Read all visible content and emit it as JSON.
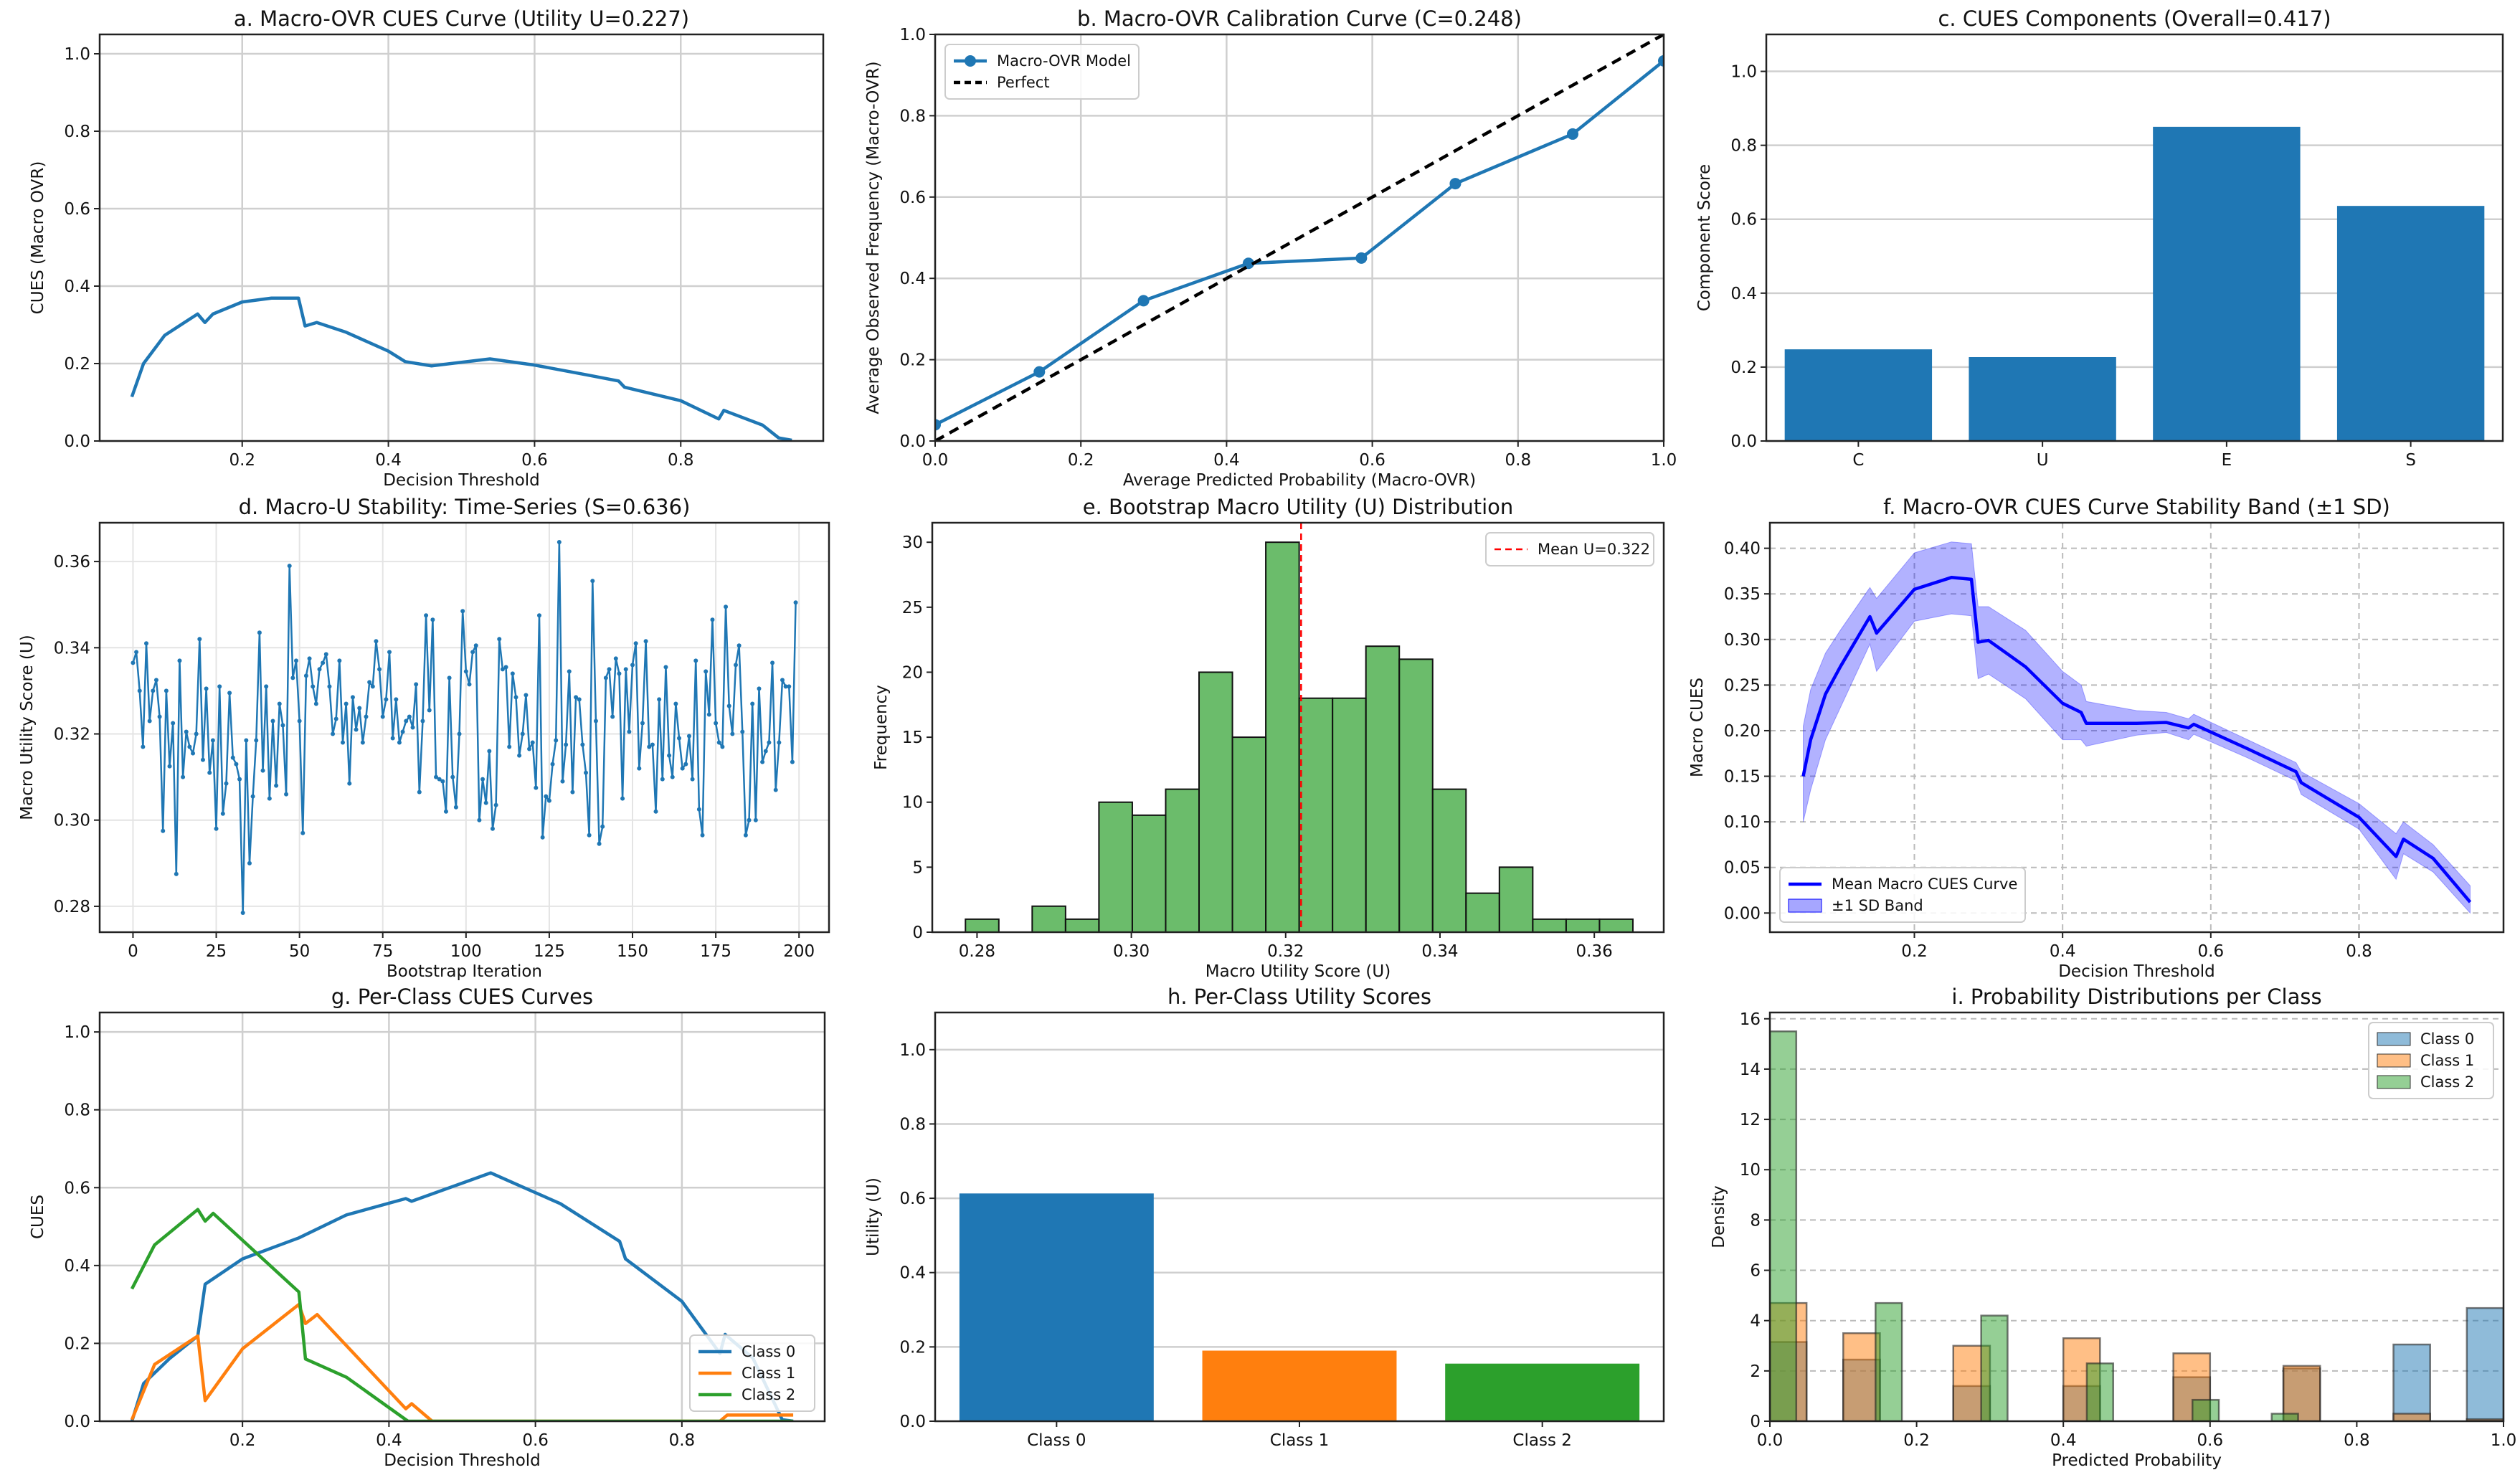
{
  "chart_data": [
    {
      "panel": "a",
      "type": "line",
      "title": "a. Macro-OVR CUES Curve (Utility U=0.227)",
      "xlabel": "Decision Threshold",
      "ylabel": "CUES (Macro OVR)",
      "xlim": [
        0.005,
        0.995
      ],
      "ylim": [
        0,
        1.05
      ],
      "xticks": [
        "0.2",
        "0.4",
        "0.6",
        "0.8"
      ],
      "yticks": [
        "0.0",
        "0.2",
        "0.4",
        "0.6",
        "0.8",
        "1.0"
      ],
      "grid": "both",
      "grid_style": "solid",
      "series": [
        {
          "kind": "line",
          "color": "#1f77b4",
          "x": [
            0.049,
            0.065,
            0.094,
            0.139,
            0.149,
            0.16,
            0.2,
            0.24,
            0.277,
            0.286,
            0.302,
            0.342,
            0.4,
            0.423,
            0.459,
            0.539,
            0.6,
            0.671,
            0.715,
            0.723,
            0.8,
            0.852,
            0.859,
            0.912,
            0.934,
            0.952
          ],
          "y": [
            0.114,
            0.2,
            0.273,
            0.328,
            0.306,
            0.328,
            0.359,
            0.369,
            0.369,
            0.297,
            0.306,
            0.281,
            0.232,
            0.205,
            0.194,
            0.212,
            0.196,
            0.171,
            0.155,
            0.139,
            0.104,
            0.057,
            0.079,
            0.041,
            0.008,
            0.002
          ]
        }
      ]
    },
    {
      "panel": "b",
      "type": "line",
      "title": "b. Macro-OVR Calibration Curve (C=0.248)",
      "xlabel": "Average Predicted Probability (Macro-OVR)",
      "ylabel": "Average Observed Frequency (Macro-OVR)",
      "xlim": [
        0,
        1
      ],
      "ylim": [
        0,
        1
      ],
      "xticks": [
        "0.0",
        "0.2",
        "0.4",
        "0.6",
        "0.8",
        "1.0"
      ],
      "yticks": [
        "0.0",
        "0.2",
        "0.4",
        "0.6",
        "0.8",
        "1.0"
      ],
      "grid": "both",
      "grid_style": "solid",
      "legend": "upper-left",
      "series": [
        {
          "name": "Macro-OVR Model",
          "kind": "line",
          "color": "#1f77b4",
          "marker": true,
          "x": [
            0.0,
            0.143,
            0.286,
            0.43,
            0.585,
            0.714,
            0.875,
            1.0
          ],
          "y": [
            0.04,
            0.17,
            0.345,
            0.437,
            0.45,
            0.633,
            0.755,
            0.935
          ]
        },
        {
          "name": "Perfect",
          "kind": "line",
          "color": "#000000",
          "dash": true,
          "x": [
            0,
            1
          ],
          "y": [
            0,
            1
          ]
        }
      ]
    },
    {
      "panel": "c",
      "type": "bar",
      "title": "c. CUES Components (Overall=0.417)",
      "xlabel": "",
      "ylabel": "Component Score",
      "xlim": [
        -0.5,
        3.5
      ],
      "ylim": [
        0,
        1.1
      ],
      "categories": [
        "C",
        "U",
        "E",
        "S"
      ],
      "yticks": [
        "0.0",
        "0.2",
        "0.4",
        "0.6",
        "0.8",
        "1.0"
      ],
      "grid": "y",
      "grid_style": "solid",
      "series": [
        {
          "kind": "bar",
          "color": "#1f77b4",
          "values": [
            0.248,
            0.227,
            0.85,
            0.636
          ]
        }
      ]
    },
    {
      "panel": "d",
      "type": "line",
      "title": "d. Macro-U Stability: Time-Series (S=0.636)",
      "xlabel": "Bootstrap Iteration",
      "ylabel": "Macro Utility Score (U)",
      "xlim": [
        -10,
        209
      ],
      "ylim": [
        0.274,
        0.369
      ],
      "xticks": [
        "0",
        "25",
        "50",
        "75",
        "100",
        "125",
        "150",
        "175",
        "200"
      ],
      "yticks": [
        "0.28",
        "0.30",
        "0.32",
        "0.34",
        "0.36"
      ],
      "grid": "both",
      "grid_style": "light",
      "series": [
        {
          "kind": "line",
          "color": "#1f77b4",
          "marker": true,
          "thin": true,
          "y": [
            0.3365,
            0.339,
            0.33,
            0.317,
            0.341,
            0.323,
            0.33,
            0.3325,
            0.324,
            0.2975,
            0.33,
            0.3125,
            0.3225,
            0.2875,
            0.337,
            0.31,
            0.3205,
            0.317,
            0.3155,
            0.32,
            0.342,
            0.314,
            0.3305,
            0.311,
            0.3185,
            0.298,
            0.331,
            0.3015,
            0.3085,
            0.3295,
            0.3145,
            0.313,
            0.3095,
            0.2785,
            0.3185,
            0.29,
            0.3055,
            0.3185,
            0.3435,
            0.3115,
            0.331,
            0.305,
            0.323,
            0.308,
            0.327,
            0.322,
            0.306,
            0.359,
            0.333,
            0.337,
            0.323,
            0.297,
            0.3335,
            0.3375,
            0.331,
            0.327,
            0.335,
            0.3365,
            0.3385,
            0.331,
            0.32,
            0.3235,
            0.337,
            0.318,
            0.327,
            0.3085,
            0.3285,
            0.321,
            0.326,
            0.318,
            0.324,
            0.332,
            0.331,
            0.3415,
            0.335,
            0.324,
            0.328,
            0.339,
            0.319,
            0.328,
            0.318,
            0.3205,
            0.323,
            0.324,
            0.3215,
            0.3315,
            0.3065,
            0.323,
            0.3475,
            0.3255,
            0.3465,
            0.31,
            0.3095,
            0.309,
            0.302,
            0.333,
            0.31,
            0.303,
            0.32,
            0.3485,
            0.3345,
            0.3315,
            0.339,
            0.3405,
            0.3,
            0.3095,
            0.304,
            0.316,
            0.298,
            0.3035,
            0.342,
            0.335,
            0.3355,
            0.317,
            0.334,
            0.3285,
            0.315,
            0.32,
            0.329,
            0.3165,
            0.318,
            0.3075,
            0.3475,
            0.296,
            0.3055,
            0.3045,
            0.313,
            0.3185,
            0.3645,
            0.309,
            0.3175,
            0.3345,
            0.3065,
            0.3285,
            0.328,
            0.3175,
            0.311,
            0.2965,
            0.3555,
            0.323,
            0.2945,
            0.2985,
            0.333,
            0.335,
            0.324,
            0.3375,
            0.334,
            0.305,
            0.335,
            0.3205,
            0.336,
            0.341,
            0.312,
            0.3225,
            0.3415,
            0.317,
            0.3175,
            0.302,
            0.328,
            0.3095,
            0.3355,
            0.315,
            0.31,
            0.327,
            0.319,
            0.312,
            0.313,
            0.3195,
            0.3095,
            0.337,
            0.3025,
            0.2965,
            0.3345,
            0.3245,
            0.3465,
            0.3225,
            0.318,
            0.317,
            0.3495,
            0.3265,
            0.32,
            0.336,
            0.3405,
            0.3205,
            0.2965,
            0.3,
            0.327,
            0.3,
            0.3305,
            0.3135,
            0.316,
            0.318,
            0.3365,
            0.307,
            0.318,
            0.3325,
            0.331,
            0.331,
            0.3135,
            0.3505
          ]
        }
      ]
    },
    {
      "panel": "e",
      "type": "bar",
      "title": "e. Bootstrap Macro Utility (U) Distribution",
      "xlabel": "Macro Utility Score (U)",
      "ylabel": "Frequency",
      "xlim": [
        0.2742,
        0.369
      ],
      "ylim": [
        0,
        31.5
      ],
      "xticks": [
        "0.28",
        "0.30",
        "0.32",
        "0.34",
        "0.36"
      ],
      "yticks": [
        "0",
        "5",
        "10",
        "15",
        "20",
        "25",
        "30"
      ],
      "grid": "none",
      "legend": "upper-right",
      "series": [
        {
          "kind": "hist",
          "color": "#2ca02c",
          "range": [
            0.2785,
            0.365
          ],
          "counts": [
            1,
            0,
            2,
            1,
            10,
            9,
            11,
            20,
            15,
            30,
            18,
            18,
            22,
            21,
            11,
            3,
            5,
            1,
            1,
            1
          ]
        },
        {
          "name": "Mean U=0.322",
          "kind": "vline",
          "color": "#ff0000",
          "x": 0.322
        }
      ]
    },
    {
      "panel": "f",
      "type": "area",
      "title": "f. Macro-OVR CUES Curve Stability Band (±1 SD)",
      "xlabel": "Decision Threshold",
      "ylabel": "Macro CUES",
      "xlim": [
        0.005,
        0.995
      ],
      "ylim": [
        -0.021,
        0.428
      ],
      "xticks": [
        "0.2",
        "0.4",
        "0.6",
        "0.8"
      ],
      "yticks": [
        "0.00",
        "0.05",
        "0.10",
        "0.15",
        "0.20",
        "0.25",
        "0.30",
        "0.35",
        "0.40"
      ],
      "grid": "both",
      "grid_style": "dashed",
      "legend": "lower-left",
      "series": [
        {
          "name": "Mean Macro CUES Curve",
          "kind": "line",
          "color": "#0000ff",
          "x": [
            0.05,
            0.06,
            0.08,
            0.1,
            0.14,
            0.149,
            0.2,
            0.25,
            0.277,
            0.286,
            0.3,
            0.35,
            0.4,
            0.425,
            0.432,
            0.5,
            0.54,
            0.57,
            0.577,
            0.65,
            0.715,
            0.722,
            0.8,
            0.85,
            0.86,
            0.9,
            0.95
          ],
          "y": [
            0.15,
            0.19,
            0.24,
            0.27,
            0.325,
            0.307,
            0.355,
            0.368,
            0.366,
            0.297,
            0.299,
            0.27,
            0.23,
            0.22,
            0.208,
            0.208,
            0.209,
            0.203,
            0.207,
            0.18,
            0.155,
            0.143,
            0.105,
            0.062,
            0.081,
            0.06,
            0.012
          ]
        },
        {
          "name": "±1 SD Band",
          "kind": "band",
          "color": "#0000ff",
          "x": [
            0.05,
            0.06,
            0.08,
            0.1,
            0.14,
            0.149,
            0.2,
            0.25,
            0.277,
            0.286,
            0.3,
            0.35,
            0.4,
            0.425,
            0.432,
            0.5,
            0.54,
            0.57,
            0.577,
            0.65,
            0.715,
            0.722,
            0.8,
            0.85,
            0.86,
            0.9,
            0.95
          ],
          "lower": [
            0.1,
            0.135,
            0.19,
            0.225,
            0.295,
            0.265,
            0.32,
            0.328,
            0.326,
            0.257,
            0.262,
            0.235,
            0.19,
            0.19,
            0.183,
            0.195,
            0.198,
            0.19,
            0.196,
            0.17,
            0.145,
            0.13,
            0.092,
            0.037,
            0.065,
            0.045,
            0.0
          ],
          "upper": [
            0.205,
            0.245,
            0.285,
            0.31,
            0.357,
            0.345,
            0.395,
            0.407,
            0.405,
            0.336,
            0.336,
            0.31,
            0.265,
            0.25,
            0.232,
            0.222,
            0.22,
            0.213,
            0.218,
            0.19,
            0.165,
            0.155,
            0.12,
            0.087,
            0.1,
            0.075,
            0.03
          ]
        }
      ]
    },
    {
      "panel": "g",
      "type": "line",
      "title": "g. Per-Class CUES Curves",
      "xlabel": "Decision Threshold",
      "ylabel": "CUES",
      "xlim": [
        0.005,
        0.995
      ],
      "ylim": [
        0,
        1.05
      ],
      "xticks": [
        "0.2",
        "0.4",
        "0.6",
        "0.8"
      ],
      "yticks": [
        "0.0",
        "0.2",
        "0.4",
        "0.6",
        "0.8",
        "1.0"
      ],
      "grid": "both",
      "grid_style": "solid",
      "legend": "lower-right",
      "series": [
        {
          "name": "Class 0",
          "kind": "line",
          "color": "#1f77b4",
          "x": [
            0.049,
            0.065,
            0.101,
            0.139,
            0.149,
            0.2,
            0.277,
            0.342,
            0.423,
            0.431,
            0.539,
            0.576,
            0.634,
            0.715,
            0.723,
            0.8,
            0.852,
            0.859,
            0.897,
            0.937,
            0.952
          ],
          "y": [
            0,
            0.097,
            0.162,
            0.219,
            0.352,
            0.417,
            0.471,
            0.53,
            0.572,
            0.565,
            0.638,
            0.607,
            0.559,
            0.462,
            0.417,
            0.308,
            0.174,
            0.223,
            0.162,
            0.004,
            0
          ]
        },
        {
          "name": "Class 1",
          "kind": "line",
          "color": "#ff7f0e",
          "x": [
            0.049,
            0.08,
            0.139,
            0.149,
            0.2,
            0.277,
            0.286,
            0.302,
            0.423,
            0.431,
            0.459,
            0.852,
            0.862,
            0.952
          ],
          "y": [
            0.004,
            0.146,
            0.219,
            0.053,
            0.186,
            0.3,
            0.251,
            0.274,
            0.032,
            0.045,
            0,
            0,
            0.016,
            0.016
          ]
        },
        {
          "name": "Class 2",
          "kind": "line",
          "color": "#2ca02c",
          "x": [
            0.049,
            0.08,
            0.139,
            0.149,
            0.16,
            0.277,
            0.286,
            0.342,
            0.426,
            0.952
          ],
          "y": [
            0.34,
            0.453,
            0.544,
            0.514,
            0.534,
            0.332,
            0.16,
            0.113,
            0,
            0
          ]
        }
      ]
    },
    {
      "panel": "h",
      "type": "bar",
      "title": "h. Per-Class Utility Scores",
      "xlabel": "",
      "ylabel": "Utility (U)",
      "xlim": [
        -0.5,
        2.5
      ],
      "ylim": [
        0,
        1.1
      ],
      "categories": [
        "Class 0",
        "Class 1",
        "Class 2"
      ],
      "yticks": [
        "0.0",
        "0.2",
        "0.4",
        "0.6",
        "0.8",
        "1.0"
      ],
      "grid": "y",
      "grid_style": "solid",
      "series": [
        {
          "kind": "bar",
          "colors": [
            "#1f77b4",
            "#ff7f0e",
            "#2ca02c"
          ],
          "values": [
            0.613,
            0.19,
            0.155
          ]
        }
      ]
    },
    {
      "panel": "i",
      "type": "bar",
      "title": "i. Probability Distributions per Class",
      "xlabel": "Predicted Probability",
      "ylabel": "Density",
      "xlim": [
        0,
        1
      ],
      "ylim": [
        0,
        16.25
      ],
      "xticks": [
        "0.0",
        "0.2",
        "0.4",
        "0.6",
        "0.8",
        "1.0"
      ],
      "yticks": [
        "0",
        "2",
        "4",
        "6",
        "8",
        "10",
        "12",
        "14",
        "16"
      ],
      "grid": "y",
      "grid_style": "dashed",
      "legend": "upper-right",
      "series": [
        {
          "name": "Class 0",
          "kind": "rects",
          "color": "#1f77b4",
          "bars": [
            [
              0,
              0.05,
              3.15
            ],
            [
              0.1,
              0.15,
              2.45
            ],
            [
              0.25,
              0.3,
              1.4
            ],
            [
              0.4,
              0.45,
              1.4
            ],
            [
              0.55,
              0.6,
              1.75
            ],
            [
              0.7,
              0.75,
              2.1
            ],
            [
              0.85,
              0.9,
              3.05
            ],
            [
              0.95,
              1.0,
              4.5
            ]
          ]
        },
        {
          "name": "Class 1",
          "kind": "rects",
          "color": "#ff7f0e",
          "bars": [
            [
              0,
              0.05,
              4.7
            ],
            [
              0.1,
              0.15,
              3.5
            ],
            [
              0.25,
              0.3,
              3.0
            ],
            [
              0.4,
              0.45,
              3.3
            ],
            [
              0.55,
              0.6,
              2.7
            ],
            [
              0.7,
              0.75,
              2.2
            ],
            [
              0.85,
              0.9,
              0.3
            ],
            [
              0.95,
              1.0,
              0.08
            ]
          ]
        },
        {
          "name": "Class 2",
          "kind": "rects",
          "color": "#2ca02c",
          "bars": [
            [
              0,
              0.036,
              15.5
            ],
            [
              0.144,
              0.18,
              4.7
            ],
            [
              0.288,
              0.324,
              4.2
            ],
            [
              0.432,
              0.468,
              2.3
            ],
            [
              0.576,
              0.612,
              0.85
            ],
            [
              0.684,
              0.72,
              0.3
            ]
          ]
        }
      ]
    }
  ]
}
